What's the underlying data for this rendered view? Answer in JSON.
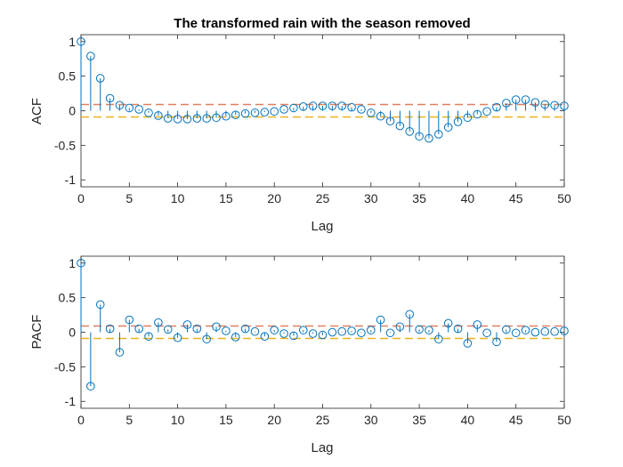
{
  "figure_title": "The transformed rain with the season removed",
  "colors": {
    "stem": "#0072BD",
    "upper_bound": "#E08060",
    "lower_bound": "#EDB120",
    "axes": "#262626"
  },
  "chart_data": [
    {
      "type": "stem",
      "title": "The transformed rain with the season removed",
      "xlabel": "Lag",
      "ylabel": "ACF",
      "xlim": [
        0,
        50
      ],
      "ylim": [
        -1.1,
        1.1
      ],
      "xticks": [
        "0",
        "5",
        "10",
        "15",
        "20",
        "25",
        "30",
        "35",
        "40",
        "45",
        "50"
      ],
      "yticks": [
        "-1",
        "-0.5",
        "0",
        "0.5",
        "1"
      ],
      "confidence_bounds": [
        0.09,
        -0.09
      ],
      "x": [
        0,
        1,
        2,
        3,
        4,
        5,
        6,
        7,
        8,
        9,
        10,
        11,
        12,
        13,
        14,
        15,
        16,
        17,
        18,
        19,
        20,
        21,
        22,
        23,
        24,
        25,
        26,
        27,
        28,
        29,
        30,
        31,
        32,
        33,
        34,
        35,
        36,
        37,
        38,
        39,
        40,
        41,
        42,
        43,
        44,
        45,
        46,
        47,
        48,
        49,
        50
      ],
      "values": [
        1.0,
        0.79,
        0.47,
        0.18,
        0.08,
        0.04,
        0.02,
        -0.03,
        -0.07,
        -0.11,
        -0.12,
        -0.12,
        -0.11,
        -0.11,
        -0.1,
        -0.08,
        -0.06,
        -0.04,
        -0.03,
        -0.02,
        -0.01,
        0.02,
        0.04,
        0.06,
        0.07,
        0.07,
        0.07,
        0.07,
        0.05,
        0.02,
        -0.03,
        -0.08,
        -0.15,
        -0.22,
        -0.3,
        -0.37,
        -0.4,
        -0.34,
        -0.24,
        -0.16,
        -0.1,
        -0.05,
        -0.01,
        0.05,
        0.11,
        0.16,
        0.16,
        0.12,
        0.09,
        0.08,
        0.07
      ]
    },
    {
      "type": "stem",
      "xlabel": "Lag",
      "ylabel": "PACF",
      "xlim": [
        0,
        50
      ],
      "ylim": [
        -1.1,
        1.1
      ],
      "xticks": [
        "0",
        "5",
        "10",
        "15",
        "20",
        "25",
        "30",
        "35",
        "40",
        "45",
        "50"
      ],
      "yticks": [
        "-1",
        "-0.5",
        "0",
        "0.5",
        "1"
      ],
      "confidence_bounds": [
        0.09,
        -0.09
      ],
      "x": [
        0,
        1,
        2,
        3,
        4,
        5,
        6,
        7,
        8,
        9,
        10,
        11,
        12,
        13,
        14,
        15,
        16,
        17,
        18,
        19,
        20,
        21,
        22,
        23,
        24,
        25,
        26,
        27,
        28,
        29,
        30,
        31,
        32,
        33,
        34,
        35,
        36,
        37,
        38,
        39,
        40,
        41,
        42,
        43,
        44,
        45,
        46,
        47,
        48,
        49,
        50
      ],
      "values": [
        1.0,
        -0.78,
        0.4,
        0.05,
        -0.29,
        0.18,
        0.05,
        -0.06,
        0.14,
        0.04,
        -0.08,
        0.11,
        0.05,
        -0.1,
        0.08,
        0.02,
        -0.07,
        0.05,
        0.01,
        -0.06,
        0.03,
        -0.02,
        -0.05,
        0.03,
        -0.02,
        -0.04,
        0.0,
        0.01,
        0.02,
        -0.01,
        0.03,
        0.18,
        -0.01,
        0.08,
        0.26,
        0.04,
        0.03,
        -0.1,
        0.13,
        0.05,
        -0.16,
        0.11,
        -0.01,
        -0.14,
        0.04,
        -0.01,
        0.03,
        0.0,
        0.01,
        0.01,
        0.02
      ]
    }
  ]
}
